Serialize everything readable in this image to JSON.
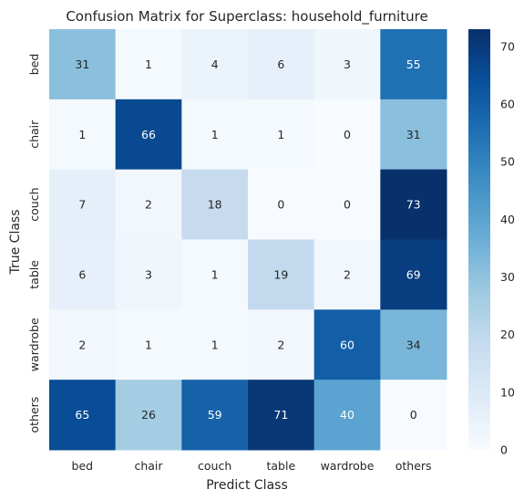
{
  "chart_data": {
    "type": "heatmap",
    "title": "Confusion Matrix for Superclass: household_furniture",
    "xlabel": "Predict Class",
    "ylabel": "True Class",
    "x_categories": [
      "bed",
      "chair",
      "couch",
      "table",
      "wardrobe",
      "others"
    ],
    "y_categories": [
      "bed",
      "chair",
      "couch",
      "table",
      "wardrobe",
      "others"
    ],
    "values": [
      [
        31,
        1,
        4,
        6,
        3,
        55
      ],
      [
        1,
        66,
        1,
        1,
        0,
        31
      ],
      [
        7,
        2,
        18,
        0,
        0,
        73
      ],
      [
        6,
        3,
        1,
        19,
        2,
        69
      ],
      [
        2,
        1,
        1,
        2,
        60,
        34
      ],
      [
        65,
        26,
        59,
        71,
        40,
        0
      ]
    ],
    "colormap": "Blues",
    "vmin": 0,
    "vmax": 73,
    "colorbar_ticks": [
      0,
      10,
      20,
      30,
      40,
      50,
      60,
      70
    ],
    "grid": false
  }
}
